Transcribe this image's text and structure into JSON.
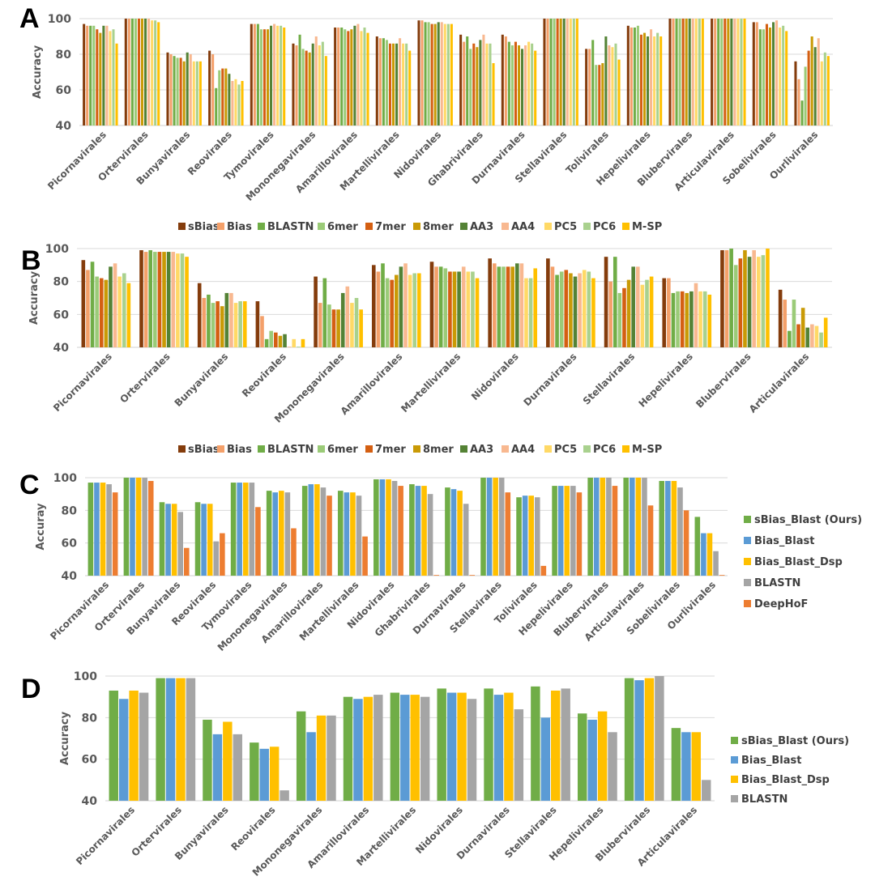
{
  "chart_data": [
    {
      "panel": "A",
      "type": "bar",
      "title": "",
      "xlabel": "",
      "ylabel": "Accuracy",
      "ylim": [
        40,
        100
      ],
      "yticks": [
        40,
        60,
        80,
        100
      ],
      "grid": true,
      "legend_position": "bottom",
      "categories": [
        "Picornavirales",
        "Ortervirales",
        "Bunyavirales",
        "Reovirales",
        "Tymovirales",
        "Mononegavirales",
        "Amarillovirales",
        "Martellivirales",
        "Nidovirales",
        "Ghabrivirales",
        "Durnavirales",
        "Stellavirales",
        "Tolivirales",
        "Hepelivirales",
        "Blubervirales",
        "Articulavirales",
        "Sobelivirales",
        "Ourlivirales"
      ],
      "series": [
        {
          "name": "sBias",
          "color": "#843C0C",
          "values": [
            97,
            100,
            81,
            82,
            97,
            86,
            95,
            90,
            99,
            91,
            91,
            100,
            83,
            96,
            100,
            100,
            98,
            76
          ]
        },
        {
          "name": "Bias",
          "color": "#F4A06A",
          "values": [
            96,
            100,
            80,
            80,
            97,
            85,
            95,
            89,
            99,
            87,
            90,
            100,
            83,
            95,
            100,
            100,
            98,
            66
          ]
        },
        {
          "name": "BLASTN",
          "color": "#70AD47",
          "values": [
            96,
            100,
            79,
            61,
            97,
            91,
            95,
            89,
            98,
            90,
            87,
            100,
            88,
            95,
            100,
            100,
            94,
            54
          ]
        },
        {
          "name": "6mer",
          "color": "#9BCB78",
          "values": [
            96,
            100,
            78,
            71,
            94,
            83,
            94,
            88,
            98,
            83,
            85,
            100,
            74,
            96,
            100,
            100,
            94,
            73
          ]
        },
        {
          "name": "7mer",
          "color": "#D45F12",
          "values": [
            94,
            100,
            78,
            72,
            94,
            82,
            93,
            86,
            97,
            86,
            87,
            100,
            74,
            91,
            100,
            100,
            97,
            82
          ]
        },
        {
          "name": "8mer",
          "color": "#C99A06",
          "values": [
            92,
            100,
            76,
            72,
            94,
            81,
            94,
            86,
            97,
            84,
            85,
            100,
            75,
            92,
            100,
            100,
            95,
            90
          ]
        },
        {
          "name": "AA3",
          "color": "#548235",
          "values": [
            96,
            100,
            81,
            69,
            96,
            86,
            96,
            86,
            98,
            88,
            83,
            100,
            90,
            90,
            100,
            100,
            98,
            84
          ]
        },
        {
          "name": "AA4",
          "color": "#F8B890",
          "values": [
            96,
            100,
            80,
            65,
            97,
            90,
            97,
            89,
            98,
            91,
            85,
            100,
            85,
            94,
            100,
            100,
            99,
            89
          ]
        },
        {
          "name": "PC5",
          "color": "#FFD966",
          "values": [
            93,
            99,
            76,
            66,
            96,
            85,
            93,
            86,
            97,
            86,
            87,
            100,
            84,
            90,
            100,
            100,
            95,
            76
          ]
        },
        {
          "name": "PC6",
          "color": "#A9D18E",
          "values": [
            94,
            99,
            76,
            63,
            96,
            87,
            95,
            86,
            97,
            86,
            86,
            100,
            86,
            92,
            100,
            100,
            96,
            81
          ]
        },
        {
          "name": "M-SP",
          "color": "#FFC000",
          "values": [
            86,
            98,
            76,
            65,
            95,
            79,
            92,
            82,
            97,
            75,
            82,
            100,
            77,
            90,
            100,
            100,
            93,
            79
          ]
        }
      ]
    },
    {
      "panel": "B",
      "type": "bar",
      "title": "",
      "xlabel": "",
      "ylabel": "Accuracy",
      "ylim": [
        40,
        100
      ],
      "yticks": [
        40,
        60,
        80,
        100
      ],
      "grid": true,
      "legend_position": "bottom",
      "categories": [
        "Picornavirales",
        "Ortervirales",
        "Bunyavirales",
        "Reovirales",
        "Mononegavirales",
        "Amarillovirales",
        "Martellivirales",
        "Nidovirales",
        "Durnavirales",
        "Stellavirales",
        "Hepelivirales",
        "Blubervirales",
        "Articulavirales"
      ],
      "series": [
        {
          "name": "sBias",
          "color": "#843C0C",
          "values": [
            93,
            99,
            79,
            68,
            83,
            90,
            92,
            94,
            94,
            95,
            82,
            99,
            75
          ]
        },
        {
          "name": "Bias",
          "color": "#F4A06A",
          "values": [
            87,
            98,
            70,
            59,
            67,
            86,
            89,
            91,
            89,
            80,
            82,
            99,
            69
          ]
        },
        {
          "name": "BLASTN",
          "color": "#70AD47",
          "values": [
            92,
            99,
            72,
            45,
            82,
            91,
            89,
            89,
            84,
            95,
            73,
            100,
            50
          ]
        },
        {
          "name": "6mer",
          "color": "#9BCB78",
          "values": [
            83,
            98,
            67,
            50,
            66,
            82,
            88,
            89,
            86,
            73,
            74,
            90,
            69
          ]
        },
        {
          "name": "7mer",
          "color": "#D45F12",
          "values": [
            82,
            98,
            68,
            49,
            63,
            81,
            86,
            89,
            87,
            76,
            74,
            94,
            54
          ]
        },
        {
          "name": "8mer",
          "color": "#C99A06",
          "values": [
            81,
            98,
            65,
            47,
            63,
            84,
            86,
            89,
            85,
            81,
            73,
            99,
            64
          ]
        },
        {
          "name": "AA3",
          "color": "#548235",
          "values": [
            89,
            98,
            73,
            48,
            73,
            89,
            86,
            91,
            83,
            89,
            74,
            95,
            52
          ]
        },
        {
          "name": "AA4",
          "color": "#F8B890",
          "values": [
            91,
            98,
            73,
            40,
            77,
            91,
            89,
            91,
            85,
            89,
            79,
            99,
            54
          ]
        },
        {
          "name": "PC5",
          "color": "#FFD966",
          "values": [
            83,
            97,
            67,
            45,
            67,
            84,
            86,
            82,
            87,
            78,
            74,
            95,
            53
          ]
        },
        {
          "name": "PC6",
          "color": "#A9D18E",
          "values": [
            85,
            97,
            68,
            40,
            70,
            85,
            86,
            82,
            86,
            81,
            74,
            96,
            49
          ]
        },
        {
          "name": "M-SP",
          "color": "#FFC000",
          "values": [
            79,
            95,
            68,
            45,
            63,
            85,
            82,
            88,
            82,
            83,
            72,
            100,
            58
          ]
        }
      ]
    },
    {
      "panel": "C",
      "type": "bar",
      "title": "",
      "xlabel": "",
      "ylabel": "Accuray",
      "ylim": [
        40,
        100
      ],
      "yticks": [
        40,
        60,
        80,
        100
      ],
      "grid": true,
      "legend_position": "right",
      "categories": [
        "Picornavirales",
        "Ortervirales",
        "Bunyavirales",
        "Reovirales",
        "Tymovirales",
        "Mononegavirales",
        "Amarillovirales",
        "Martellivirales",
        "Nidovirales",
        "Ghabrivirales",
        "Durnavirales",
        "Stellavirales",
        "Tolivirales",
        "Hepelivirales",
        "Blubervirales",
        "Articulavirales",
        "Sobelivirales",
        "Ourlivirales"
      ],
      "series": [
        {
          "name": "sBias_Blast (Ours)",
          "color": "#70AD47",
          "values": [
            97,
            100,
            85,
            85,
            97,
            92,
            95,
            92,
            99,
            96,
            94,
            100,
            88,
            95,
            100,
            100,
            98,
            76
          ]
        },
        {
          "name": "Bias_Blast",
          "color": "#5B9BD5",
          "values": [
            97,
            100,
            84,
            84,
            97,
            91,
            96,
            91,
            99,
            95,
            93,
            100,
            89,
            95,
            100,
            100,
            98,
            66
          ]
        },
        {
          "name": "Bias_Blast_Dsp",
          "color": "#FFC000",
          "values": [
            97,
            100,
            84,
            84,
            97,
            92,
            96,
            91,
            99,
            95,
            92,
            100,
            89,
            95,
            100,
            100,
            98,
            66
          ]
        },
        {
          "name": "BLASTN",
          "color": "#A5A5A5",
          "values": [
            96,
            100,
            79,
            61,
            97,
            91,
            94,
            89,
            98,
            90,
            84,
            100,
            88,
            95,
            100,
            100,
            94,
            55
          ]
        },
        {
          "name": "DeepHoF",
          "color": "#ED7D31",
          "values": [
            91,
            98,
            57,
            66,
            82,
            69,
            89,
            64,
            95,
            40,
            40,
            91,
            46,
            91,
            95,
            83,
            80,
            40
          ]
        }
      ]
    },
    {
      "panel": "D",
      "type": "bar",
      "title": "",
      "xlabel": "",
      "ylabel": "Accuracy",
      "ylim": [
        40,
        100
      ],
      "yticks": [
        40,
        60,
        80,
        100
      ],
      "grid": true,
      "legend_position": "right",
      "categories": [
        "Picornavirales",
        "Ortervirales",
        "Bunyavirales",
        "Reovirales",
        "Mononegavirales",
        "Amarillovirales",
        "Martellivirales",
        "Nidovirales",
        "Durnavirales",
        "Stellavirales",
        "Hepelivirales",
        "Blubervirales",
        "Articulavirales"
      ],
      "series": [
        {
          "name": "sBias_Blast (Ours)",
          "color": "#70AD47",
          "values": [
            93,
            99,
            79,
            68,
            83,
            90,
            92,
            94,
            94,
            95,
            82,
            99,
            75
          ]
        },
        {
          "name": "Bias_Blast",
          "color": "#5B9BD5",
          "values": [
            89,
            99,
            72,
            65,
            73,
            89,
            91,
            92,
            91,
            80,
            79,
            98,
            73
          ]
        },
        {
          "name": "Bias_Blast_Dsp",
          "color": "#FFC000",
          "values": [
            93,
            99,
            78,
            66,
            81,
            90,
            91,
            92,
            92,
            93,
            83,
            99,
            73
          ]
        },
        {
          "name": "BLASTN",
          "color": "#A5A5A5",
          "values": [
            92,
            99,
            72,
            45,
            81,
            91,
            90,
            89,
            84,
            94,
            73,
            100,
            50
          ]
        }
      ]
    }
  ]
}
